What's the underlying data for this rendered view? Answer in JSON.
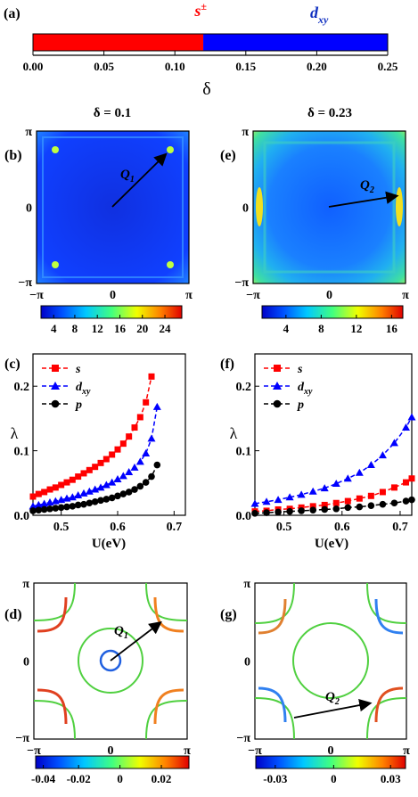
{
  "chart_data": [
    {
      "panel": "(a)",
      "type": "bar",
      "xlabel": "δ",
      "xlim": [
        0.0,
        0.25
      ],
      "ticks": [
        "0.00",
        "0.05",
        "0.10",
        "0.15",
        "0.20",
        "0.25"
      ],
      "regions": [
        {
          "label_main": "s",
          "label_sup": "±",
          "from": 0.0,
          "to": 0.12,
          "color": "#ff0000"
        },
        {
          "label_main": "d",
          "label_sub": "xy",
          "from": 0.12,
          "to": 0.25,
          "color": "#0000ff"
        }
      ]
    },
    {
      "panel": "(b)",
      "type": "heatmap",
      "title": "δ = 0.1",
      "vector_label": "Q",
      "vector_sub": "1",
      "x_ticks": [
        "−π",
        "0",
        "π"
      ],
      "y_ticks": [
        "π",
        "0",
        "−π"
      ],
      "colorbar_ticks": [
        "4",
        "8",
        "12",
        "16",
        "20",
        "24"
      ]
    },
    {
      "panel": "(e)",
      "type": "heatmap",
      "title": "δ = 0.23",
      "vector_label": "Q",
      "vector_sub": "2",
      "x_ticks": [
        "−π",
        "0",
        "π"
      ],
      "y_ticks": [
        "π",
        "0",
        "−π"
      ],
      "colorbar_ticks": [
        "4",
        "8",
        "12",
        "16"
      ]
    },
    {
      "panel": "(c)",
      "type": "line",
      "xlabel": "U(eV)",
      "ylabel": "λ",
      "xlim": [
        0.45,
        0.72
      ],
      "ylim": [
        0.0,
        0.25
      ],
      "x_ticks": [
        "0.5",
        "0.6",
        "0.7"
      ],
      "y_ticks": [
        "0.0",
        "0.1",
        "0.2"
      ],
      "legend_position": "top-left",
      "series": [
        {
          "name": "s",
          "color": "#ff0000",
          "marker": "square",
          "x": [
            0.45,
            0.46,
            0.47,
            0.48,
            0.49,
            0.5,
            0.51,
            0.52,
            0.53,
            0.54,
            0.55,
            0.56,
            0.57,
            0.58,
            0.59,
            0.6,
            0.61,
            0.62,
            0.63,
            0.64,
            0.65,
            0.66
          ],
          "y": [
            0.029,
            0.033,
            0.036,
            0.04,
            0.043,
            0.047,
            0.051,
            0.055,
            0.06,
            0.065,
            0.07,
            0.075,
            0.081,
            0.087,
            0.094,
            0.102,
            0.111,
            0.122,
            0.136,
            0.152,
            0.175,
            0.215
          ]
        },
        {
          "name": "d",
          "name_sub": "xy",
          "color": "#0000ff",
          "marker": "triangle",
          "x": [
            0.45,
            0.46,
            0.47,
            0.48,
            0.49,
            0.5,
            0.51,
            0.52,
            0.53,
            0.54,
            0.55,
            0.56,
            0.57,
            0.58,
            0.59,
            0.6,
            0.61,
            0.62,
            0.63,
            0.64,
            0.65,
            0.66,
            0.67
          ],
          "y": [
            0.014,
            0.016,
            0.018,
            0.02,
            0.022,
            0.024,
            0.026,
            0.028,
            0.031,
            0.034,
            0.037,
            0.04,
            0.043,
            0.047,
            0.051,
            0.056,
            0.061,
            0.067,
            0.074,
            0.083,
            0.096,
            0.119,
            0.168
          ]
        },
        {
          "name": "p",
          "color": "#000000",
          "marker": "circle",
          "x": [
            0.45,
            0.46,
            0.47,
            0.48,
            0.49,
            0.5,
            0.51,
            0.52,
            0.53,
            0.54,
            0.55,
            0.56,
            0.57,
            0.58,
            0.59,
            0.6,
            0.61,
            0.62,
            0.63,
            0.64,
            0.65,
            0.66,
            0.67
          ],
          "y": [
            0.007,
            0.008,
            0.009,
            0.01,
            0.011,
            0.012,
            0.013,
            0.014,
            0.016,
            0.017,
            0.019,
            0.021,
            0.023,
            0.025,
            0.027,
            0.03,
            0.033,
            0.036,
            0.04,
            0.045,
            0.051,
            0.06,
            0.078
          ]
        }
      ]
    },
    {
      "panel": "(f)",
      "type": "line",
      "xlabel": "U(eV)",
      "ylabel": "λ",
      "xlim": [
        0.45,
        0.72
      ],
      "ylim": [
        0.0,
        0.25
      ],
      "x_ticks": [
        "0.5",
        "0.6",
        "0.7"
      ],
      "y_ticks": [
        "0.0",
        "0.1",
        "0.2"
      ],
      "legend_position": "top-left",
      "series": [
        {
          "name": "s",
          "color": "#ff0000",
          "marker": "square",
          "x": [
            0.45,
            0.47,
            0.49,
            0.51,
            0.53,
            0.55,
            0.57,
            0.59,
            0.61,
            0.63,
            0.65,
            0.67,
            0.69,
            0.71,
            0.72
          ],
          "y": [
            0.006,
            0.007,
            0.009,
            0.01,
            0.012,
            0.014,
            0.016,
            0.019,
            0.022,
            0.026,
            0.03,
            0.036,
            0.043,
            0.051,
            0.057
          ]
        },
        {
          "name": "d",
          "name_sub": "xy",
          "color": "#0000ff",
          "marker": "triangle",
          "x": [
            0.45,
            0.47,
            0.49,
            0.51,
            0.53,
            0.55,
            0.57,
            0.59,
            0.61,
            0.63,
            0.65,
            0.67,
            0.69,
            0.71,
            0.72
          ],
          "y": [
            0.018,
            0.021,
            0.024,
            0.028,
            0.032,
            0.037,
            0.042,
            0.049,
            0.057,
            0.066,
            0.078,
            0.093,
            0.112,
            0.136,
            0.152
          ]
        },
        {
          "name": "p",
          "color": "#000000",
          "marker": "circle",
          "x": [
            0.45,
            0.47,
            0.49,
            0.51,
            0.53,
            0.55,
            0.57,
            0.59,
            0.61,
            0.63,
            0.65,
            0.67,
            0.69,
            0.71,
            0.72
          ],
          "y": [
            0.003,
            0.004,
            0.005,
            0.006,
            0.007,
            0.008,
            0.009,
            0.01,
            0.012,
            0.013,
            0.015,
            0.017,
            0.019,
            0.022,
            0.024
          ]
        }
      ]
    },
    {
      "panel": "(d)",
      "type": "heatmap",
      "vector_label": "Q",
      "vector_sub": "1",
      "x_ticks": [
        "−π",
        "0",
        "π"
      ],
      "y_ticks": [
        "π",
        "0",
        "−π"
      ],
      "colorbar_ticks": [
        "-0.04",
        "-0.02",
        "0",
        "0.02"
      ]
    },
    {
      "panel": "(g)",
      "type": "heatmap",
      "vector_label": "Q",
      "vector_sub": "2",
      "x_ticks": [
        "−π",
        "0",
        "π"
      ],
      "y_ticks": [
        "π",
        "0",
        "−π"
      ],
      "colorbar_ticks": [
        "-0.03",
        "0",
        "0.03"
      ]
    }
  ]
}
